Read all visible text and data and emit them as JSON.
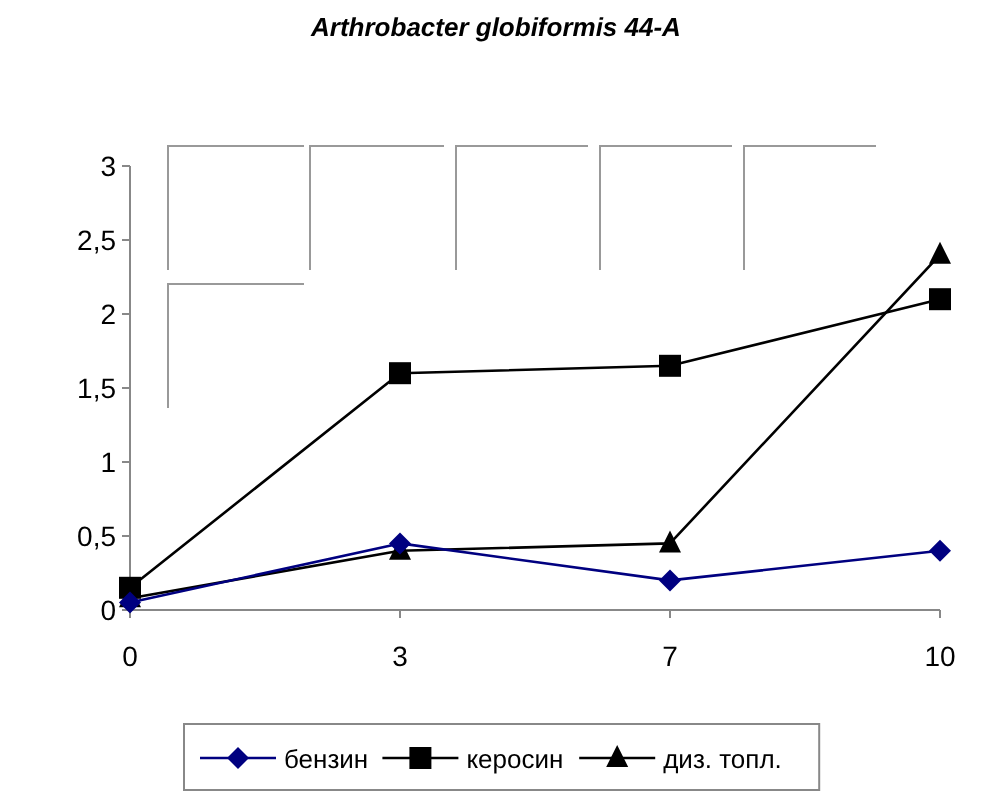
{
  "chart_data": {
    "type": "line",
    "title": "Arthrobacter globiformis 44-A",
    "categories": [
      "0",
      "3",
      "7",
      "10"
    ],
    "ylim": [
      0,
      3
    ],
    "yticks": [
      0,
      {
        "value": 0.5,
        "label": "0,5"
      },
      1,
      {
        "value": 1.5,
        "label": "1,5"
      },
      2,
      {
        "value": 2.5,
        "label": "2,5"
      },
      3
    ],
    "grid": false,
    "legend": "bottom",
    "line_style": "solid",
    "series": [
      {
        "name": "бензин",
        "color": "#000080",
        "marker": "diamond",
        "values": [
          0.05,
          0.45,
          0.2,
          0.4
        ]
      },
      {
        "name": "керосин",
        "color": "#000000",
        "marker": "square",
        "values": [
          0.15,
          1.6,
          1.65,
          2.1
        ]
      },
      {
        "name": "диз. топл.",
        "color": "#000000",
        "marker": "triangle",
        "values": [
          0.08,
          0.4,
          0.45,
          2.4
        ]
      }
    ]
  }
}
